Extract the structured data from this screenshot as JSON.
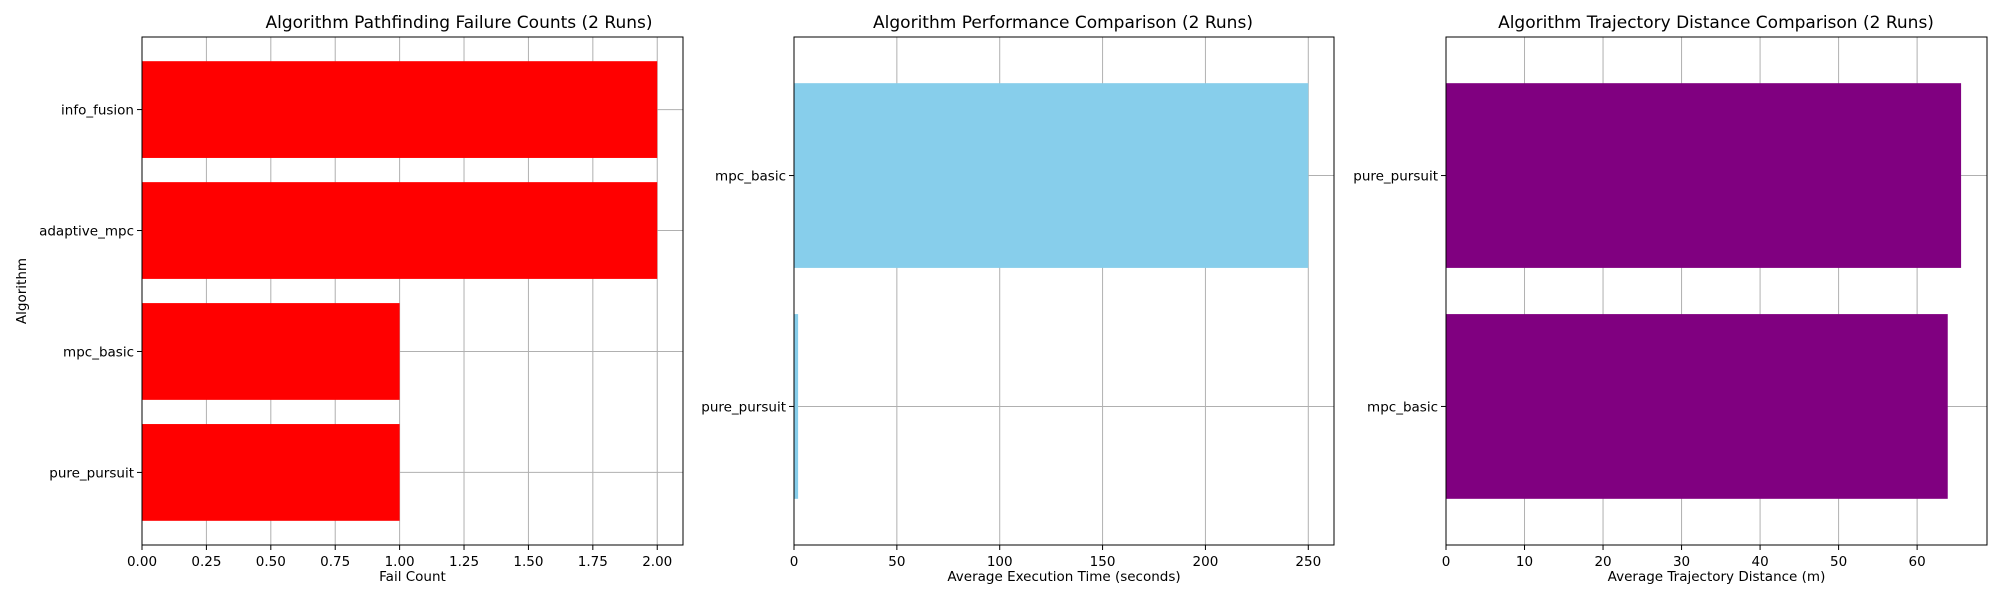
{
  "chart_data": [
    {
      "type": "bar",
      "orientation": "horizontal",
      "title": "Algorithm Pathfinding Failure Counts (2 Runs)",
      "xlabel": "Fail Count",
      "ylabel": "Algorithm",
      "categories": [
        "pure_pursuit",
        "mpc_basic",
        "adaptive_mpc",
        "info_fusion"
      ],
      "values": [
        1,
        1,
        2,
        2
      ],
      "xlim": [
        0,
        2.1
      ],
      "xticks": [
        0,
        0.25,
        0.5,
        0.75,
        1.0,
        1.25,
        1.5,
        1.75,
        2.0
      ],
      "xtick_labels": [
        "0.00",
        "0.25",
        "0.50",
        "0.75",
        "1.00",
        "1.25",
        "1.50",
        "1.75",
        "2.00"
      ],
      "color": "#ff0000",
      "grid": true
    },
    {
      "type": "bar",
      "orientation": "horizontal",
      "title": "Algorithm Performance Comparison (2 Runs)",
      "xlabel": "Average Execution Time (seconds)",
      "ylabel": "",
      "categories": [
        "pure_pursuit",
        "mpc_basic"
      ],
      "values": [
        2,
        250
      ],
      "xlim": [
        0,
        262.5
      ],
      "xticks": [
        0,
        50,
        100,
        150,
        200,
        250
      ],
      "xtick_labels": [
        "0",
        "50",
        "100",
        "150",
        "200",
        "250"
      ],
      "color": "#87ceeb",
      "grid": true
    },
    {
      "type": "bar",
      "orientation": "horizontal",
      "title": "Algorithm Trajectory Distance Comparison (2 Runs)",
      "xlabel": "Average Trajectory Distance (m)",
      "ylabel": "",
      "categories": [
        "mpc_basic",
        "pure_pursuit"
      ],
      "values": [
        63.9,
        65.6
      ],
      "xlim": [
        0,
        68.9
      ],
      "xticks": [
        0,
        10,
        20,
        30,
        40,
        50,
        60
      ],
      "xtick_labels": [
        "0",
        "10",
        "20",
        "30",
        "40",
        "50",
        "60"
      ],
      "color": "#800080",
      "grid": true
    }
  ]
}
